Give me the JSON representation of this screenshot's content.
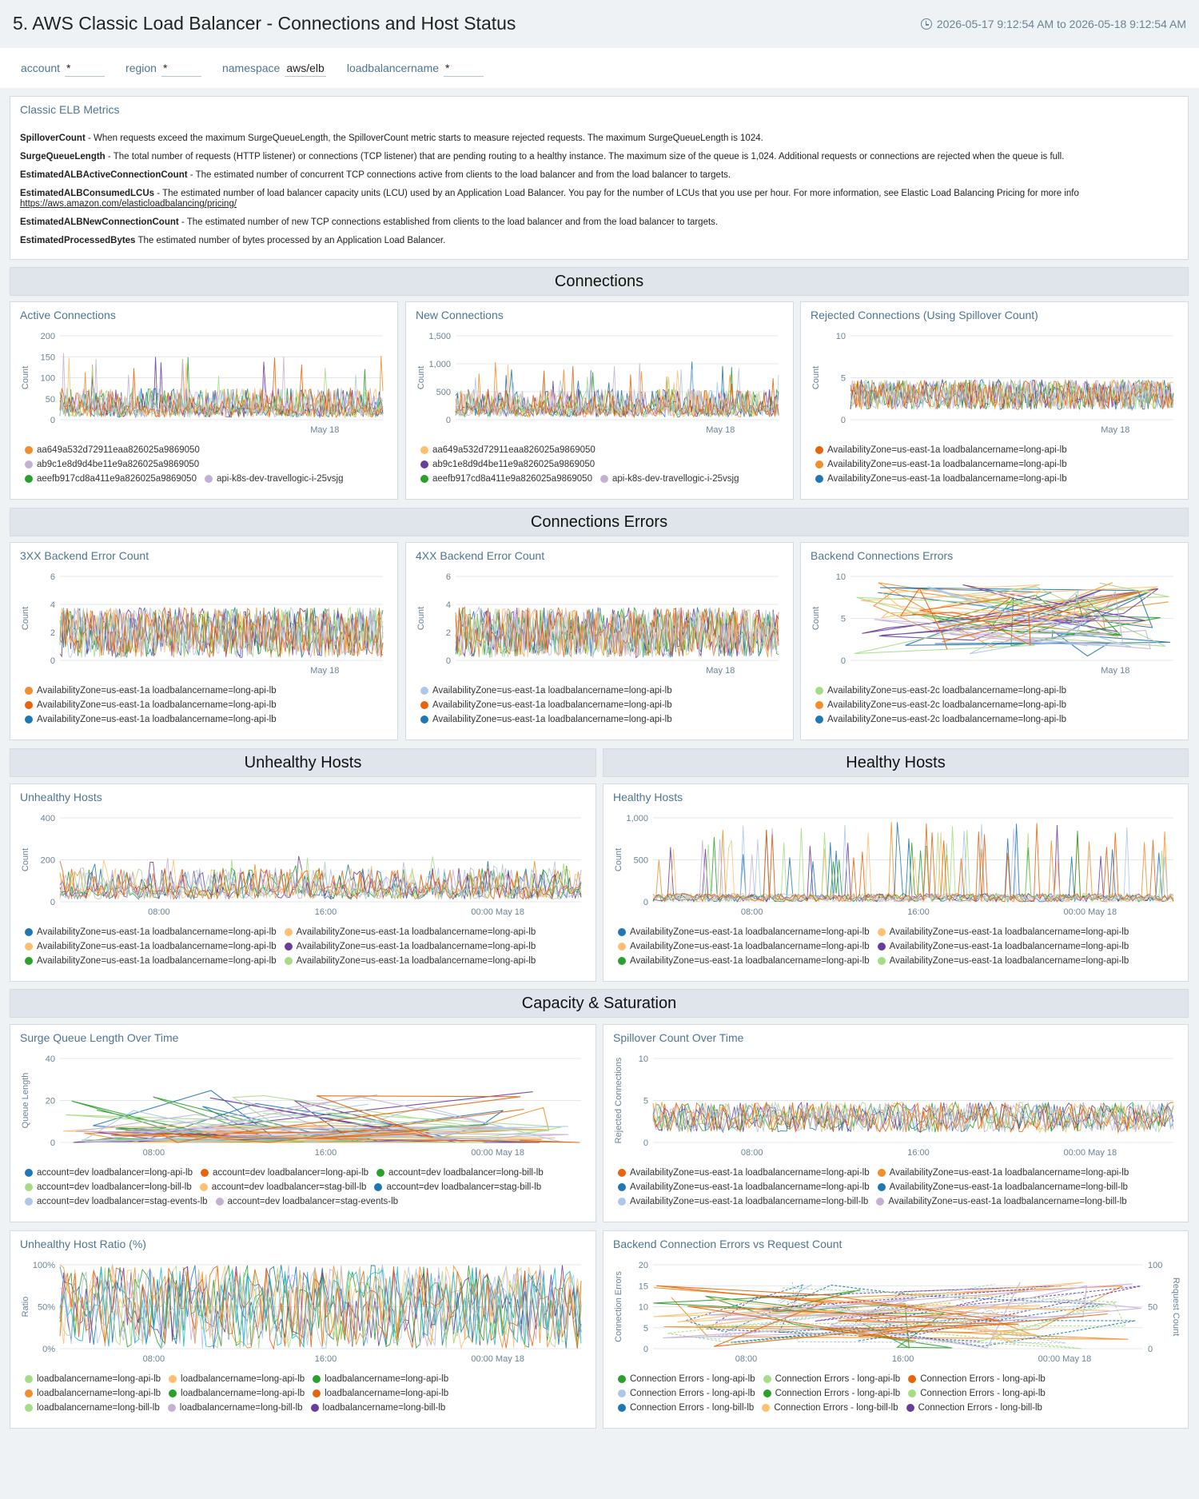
{
  "header": {
    "title": "5. AWS Classic Load Balancer - Connections and Host Status",
    "time_range": "2026-05-17 9:12:54 AM to 2026-05-18 9:12:54 AM",
    "clock_icon": "clock-icon"
  },
  "filters": [
    {
      "label": "account",
      "value": "*"
    },
    {
      "label": "region",
      "value": "*"
    },
    {
      "label": "namespace",
      "value": "aws/elb"
    },
    {
      "label": "loadbalancername",
      "value": "*"
    }
  ],
  "text_panel": {
    "title": "Classic ELB Metrics",
    "items": [
      {
        "term": "SpilloverCount",
        "desc": " - When requests exceed the maximum SurgeQueueLength, the SpilloverCount metric starts to measure rejected requests. The maximum SurgeQueueLength is 1024."
      },
      {
        "term": "SurgeQueueLength",
        "desc": " - The total number of requests (HTTP listener) or connections (TCP listener) that are pending routing to a healthy instance. The maximum size of the queue is 1,024. Additional requests or connections are rejected when the queue is full."
      },
      {
        "term": "EstimatedALBActiveConnectionCount",
        "desc": " - The estimated number of concurrent TCP connections active from clients to the load balancer and from the load balancer to targets."
      },
      {
        "term": "EstimatedALBConsumedLCUs",
        "desc": " - The estimated number of load balancer capacity units (LCU) used by an Application Load Balancer. You pay for the number of LCUs that you use per hour. For more information, see Elastic Load Balancing Pricing for more info",
        "link": "https://aws.amazon.com/elasticloadbalancing/pricing/"
      },
      {
        "term": "EstimatedALBNewConnectionCount",
        "desc": " - The estimated number of new TCP connections established from clients to the load balancer and from the load balancer to targets."
      },
      {
        "term": "EstimatedProcessedBytes",
        "desc": " The estimated number of bytes processed by an Application Load Balancer."
      }
    ]
  },
  "sections": {
    "connections": "Connections",
    "connections_errors": "Connections Errors",
    "unhealthy_hosts": "Unhealthy Hosts",
    "healthy_hosts": "Healthy Hosts",
    "capacity": "Capacity & Saturation"
  },
  "colors": {
    "orange": "#f28e2b",
    "lightorange": "#ffbf70",
    "purple": "#6a3d9a",
    "lilac": "#c5b0d5",
    "green": "#2ca02c",
    "lightgreen": "#a6dc85",
    "blue": "#1f77b4",
    "lightblue": "#aec7e8",
    "darkorange": "#e8640c"
  },
  "chart_data": [
    {
      "id": "active",
      "type": "line",
      "title": "Active Connections",
      "ylabel": "Count",
      "yticks": [
        "0",
        "50",
        "100",
        "150",
        "200"
      ],
      "ylim": [
        0,
        200
      ],
      "xticks": [
        {
          "label": "May 18",
          "pos": 0.82
        }
      ],
      "series_style": "noisy",
      "base": 30,
      "amp": 70,
      "spikes": 160,
      "legend": [
        [
          {
            "name": "aa649a532d72911eaa826025a9869050",
            "color": "#f28e2b"
          }
        ],
        [
          {
            "name": "ab9c1e8d9d4be11e9a826025a9869050",
            "color": "#c5b0d5"
          }
        ],
        [
          {
            "name": "aeefb917cd8a411e9a826025a9869050",
            "color": "#2ca02c"
          },
          {
            "name": "api-k8s-dev-travellogic-i-25vsjg",
            "color": "#c5b0d5"
          }
        ]
      ]
    },
    {
      "id": "new",
      "type": "line",
      "title": "New Connections",
      "ylabel": "Count",
      "yticks": [
        "0",
        "500",
        "1,000",
        "1,500"
      ],
      "ylim": [
        0,
        1500
      ],
      "xticks": [
        {
          "label": "May 18",
          "pos": 0.82
        }
      ],
      "series_style": "noisy",
      "base": 250,
      "amp": 500,
      "spikes": 1050,
      "legend": [
        [
          {
            "name": "aa649a532d72911eaa826025a9869050",
            "color": "#ffbf70"
          }
        ],
        [
          {
            "name": "ab9c1e8d9d4be11e9a826025a9869050",
            "color": "#6a3d9a"
          }
        ],
        [
          {
            "name": "aeefb917cd8a411e9a826025a9869050",
            "color": "#2ca02c"
          },
          {
            "name": "api-k8s-dev-travellogic-i-25vsjg",
            "color": "#c5b0d5"
          }
        ]
      ]
    },
    {
      "id": "rejected",
      "type": "line",
      "title": "Rejected Connections (Using Spillover Count)",
      "ylabel": "Count",
      "yticks": [
        "0",
        "5",
        "10"
      ],
      "ylim": [
        0,
        10
      ],
      "xticks": [
        {
          "label": "May 18",
          "pos": 0.82
        }
      ],
      "series_style": "band",
      "base": 3,
      "amp": 1.8,
      "spikes": 0,
      "legend": [
        [
          {
            "name": "AvailabilityZone=us-east-1a loadbalancername=long-api-lb",
            "color": "#e8640c"
          }
        ],
        [
          {
            "name": "AvailabilityZone=us-east-1a loadbalancername=long-api-lb",
            "color": "#f28e2b"
          }
        ],
        [
          {
            "name": "AvailabilityZone=us-east-1a loadbalancername=long-api-lb",
            "color": "#1f77b4"
          }
        ]
      ]
    },
    {
      "id": "err3xx",
      "type": "line",
      "title": "3XX Backend Error Count",
      "ylabel": "Count",
      "yticks": [
        "0",
        "2",
        "4",
        "6"
      ],
      "ylim": [
        0,
        6
      ],
      "xticks": [
        {
          "label": "May 18",
          "pos": 0.82
        }
      ],
      "series_style": "band",
      "base": 2,
      "amp": 1.8,
      "spikes": 0,
      "legend": [
        [
          {
            "name": "AvailabilityZone=us-east-1a loadbalancername=long-api-lb",
            "color": "#f28e2b"
          }
        ],
        [
          {
            "name": "AvailabilityZone=us-east-1a loadbalancername=long-api-lb",
            "color": "#e8640c"
          }
        ],
        [
          {
            "name": "AvailabilityZone=us-east-1a loadbalancername=long-api-lb",
            "color": "#1f77b4"
          }
        ]
      ]
    },
    {
      "id": "err4xx",
      "type": "line",
      "title": "4XX Backend Error Count",
      "ylabel": "Count",
      "yticks": [
        "0",
        "2",
        "4",
        "6"
      ],
      "ylim": [
        0,
        6
      ],
      "xticks": [
        {
          "label": "May 18",
          "pos": 0.82
        }
      ],
      "series_style": "band",
      "base": 2,
      "amp": 1.8,
      "spikes": 0,
      "legend": [
        [
          {
            "name": "AvailabilityZone=us-east-1a loadbalancername=long-api-lb",
            "color": "#aec7e8"
          }
        ],
        [
          {
            "name": "AvailabilityZone=us-east-1a loadbalancername=long-api-lb",
            "color": "#e8640c"
          }
        ],
        [
          {
            "name": "AvailabilityZone=us-east-1a loadbalancername=long-api-lb",
            "color": "#1f77b4"
          }
        ]
      ]
    },
    {
      "id": "backend",
      "type": "line",
      "title": "Backend Connections Errors",
      "ylabel": "Count",
      "yticks": [
        "0",
        "5",
        "10"
      ],
      "ylim": [
        0,
        10
      ],
      "xticks": [
        {
          "label": "May 18",
          "pos": 0.82
        }
      ],
      "series_style": "sparse",
      "base": 5,
      "amp": 4.5,
      "spikes": 0,
      "legend": [
        [
          {
            "name": "AvailabilityZone=us-east-2c loadbalancername=long-api-lb",
            "color": "#a6dc85"
          }
        ],
        [
          {
            "name": "AvailabilityZone=us-east-2c loadbalancername=long-api-lb",
            "color": "#f28e2b"
          }
        ],
        [
          {
            "name": "AvailabilityZone=us-east-2c loadbalancername=long-api-lb",
            "color": "#1f77b4"
          }
        ]
      ]
    },
    {
      "id": "unhealthy",
      "type": "line",
      "title": "Unhealthy Hosts",
      "ylabel": "Count",
      "yticks": [
        "0",
        "200",
        "400"
      ],
      "ylim": [
        0,
        400
      ],
      "xticks": [
        {
          "label": "08:00",
          "pos": 0.19
        },
        {
          "label": "16:00",
          "pos": 0.51
        },
        {
          "label": "00:00 May 18",
          "pos": 0.84
        }
      ],
      "series_style": "noisy",
      "base": 60,
      "amp": 150,
      "spikes": 220,
      "legend": [
        [
          {
            "name": "AvailabilityZone=us-east-1a loadbalancername=long-api-lb",
            "color": "#1f77b4"
          },
          {
            "name": "AvailabilityZone=us-east-1a loadbalancername=long-api-lb",
            "color": "#ffbf70"
          }
        ],
        [
          {
            "name": "AvailabilityZone=us-east-1a loadbalancername=long-api-lb",
            "color": "#ffbf70"
          },
          {
            "name": "AvailabilityZone=us-east-1a loadbalancername=long-api-lb",
            "color": "#6a3d9a"
          }
        ],
        [
          {
            "name": "AvailabilityZone=us-east-1a loadbalancername=long-api-lb",
            "color": "#2ca02c"
          },
          {
            "name": "AvailabilityZone=us-east-1a loadbalancername=long-api-lb",
            "color": "#a6dc85"
          }
        ]
      ]
    },
    {
      "id": "healthy",
      "type": "line",
      "title": "Healthy Hosts",
      "ylabel": "Count",
      "yticks": [
        "0",
        "500",
        "1,000"
      ],
      "ylim": [
        0,
        1000
      ],
      "xticks": [
        {
          "label": "08:00",
          "pos": 0.19
        },
        {
          "label": "16:00",
          "pos": 0.51
        },
        {
          "label": "00:00 May 18",
          "pos": 0.84
        }
      ],
      "series_style": "spiky",
      "base": 40,
      "amp": 100,
      "spikes": 950,
      "legend": [
        [
          {
            "name": "AvailabilityZone=us-east-1a loadbalancername=long-api-lb",
            "color": "#1f77b4"
          },
          {
            "name": "AvailabilityZone=us-east-1a loadbalancername=long-api-lb",
            "color": "#ffbf70"
          }
        ],
        [
          {
            "name": "AvailabilityZone=us-east-1a loadbalancername=long-api-lb",
            "color": "#ffbf70"
          },
          {
            "name": "AvailabilityZone=us-east-1a loadbalancername=long-api-lb",
            "color": "#6a3d9a"
          }
        ],
        [
          {
            "name": "AvailabilityZone=us-east-1a loadbalancername=long-api-lb",
            "color": "#2ca02c"
          },
          {
            "name": "AvailabilityZone=us-east-1a loadbalancername=long-api-lb",
            "color": "#a6dc85"
          }
        ]
      ]
    },
    {
      "id": "surge",
      "type": "line",
      "title": "Surge Queue Length Over Time",
      "ylabel": "Queue Length",
      "yticks": [
        "0",
        "20",
        "40"
      ],
      "ylim": [
        0,
        40
      ],
      "xticks": [
        {
          "label": "08:00",
          "pos": 0.18
        },
        {
          "label": "16:00",
          "pos": 0.51
        },
        {
          "label": "00:00 May 18",
          "pos": 0.84
        }
      ],
      "series_style": "sparse",
      "base": 3,
      "amp": 6,
      "spikes": 25,
      "legend": [
        [
          {
            "name": "account=dev loadbalancer=long-api-lb",
            "color": "#1f77b4"
          },
          {
            "name": "account=dev loadbalancer=long-api-lb",
            "color": "#e8640c"
          },
          {
            "name": "account=dev loadbalancer=long-bill-lb",
            "color": "#2ca02c"
          }
        ],
        [
          {
            "name": "account=dev loadbalancer=long-bill-lb",
            "color": "#a6dc85"
          },
          {
            "name": "account=dev loadbalancer=stag-bill-lb",
            "color": "#ffbf70"
          },
          {
            "name": "account=dev loadbalancer=stag-bill-lb",
            "color": "#1f77b4"
          }
        ],
        [
          {
            "name": "account=dev loadbalancer=stag-events-lb",
            "color": "#aec7e8"
          },
          {
            "name": "account=dev loadbalancer=stag-events-lb",
            "color": "#c5b0d5"
          }
        ]
      ]
    },
    {
      "id": "spillover",
      "type": "line",
      "title": "Spillover Count Over Time",
      "ylabel": "Rejected Connections",
      "yticks": [
        "0",
        "5",
        "10"
      ],
      "ylim": [
        0,
        10
      ],
      "xticks": [
        {
          "label": "08:00",
          "pos": 0.19
        },
        {
          "label": "16:00",
          "pos": 0.51
        },
        {
          "label": "00:00 May 18",
          "pos": 0.84
        }
      ],
      "series_style": "band",
      "base": 3,
      "amp": 1.8,
      "spikes": 0,
      "legend": [
        [
          {
            "name": "AvailabilityZone=us-east-1a loadbalancername=long-api-lb",
            "color": "#e8640c"
          },
          {
            "name": "AvailabilityZone=us-east-1a loadbalancername=long-api-lb",
            "color": "#f28e2b"
          }
        ],
        [
          {
            "name": "AvailabilityZone=us-east-1a loadbalancername=long-api-lb",
            "color": "#1f77b4"
          },
          {
            "name": "AvailabilityZone=us-east-1a loadbalancername=long-bill-lb",
            "color": "#1f77b4"
          }
        ],
        [
          {
            "name": "AvailabilityZone=us-east-1a loadbalancername=long-bill-lb",
            "color": "#aec7e8"
          },
          {
            "name": "AvailabilityZone=us-east-1a loadbalancername=long-bill-lb",
            "color": "#c5b0d5"
          }
        ]
      ]
    },
    {
      "id": "ratio",
      "type": "line",
      "title": "Unhealthy Host Ratio (%)",
      "ylabel": "Ratio",
      "yticks": [
        "0%",
        "50%",
        "100%"
      ],
      "ylim": [
        0,
        100
      ],
      "xticks": [
        {
          "label": "08:00",
          "pos": 0.18
        },
        {
          "label": "16:00",
          "pos": 0.51
        },
        {
          "label": "00:00 May 18",
          "pos": 0.84
        }
      ],
      "series_style": "full",
      "base": 50,
      "amp": 50,
      "spikes": 0,
      "legend": [
        [
          {
            "name": "loadbalancername=long-api-lb",
            "color": "#a6dc85"
          },
          {
            "name": "loadbalancername=long-api-lb",
            "color": "#ffbf70"
          },
          {
            "name": "loadbalancername=long-api-lb",
            "color": "#2ca02c"
          }
        ],
        [
          {
            "name": "loadbalancername=long-api-lb",
            "color": "#f28e2b"
          },
          {
            "name": "loadbalancername=long-api-lb",
            "color": "#2ca02c"
          },
          {
            "name": "loadbalancername=long-api-lb",
            "color": "#e8640c"
          }
        ],
        [
          {
            "name": "loadbalancername=long-bill-lb",
            "color": "#a6dc85"
          },
          {
            "name": "loadbalancername=long-bill-lb",
            "color": "#c5b0d5"
          },
          {
            "name": "loadbalancername=long-bill-lb",
            "color": "#6a3d9a"
          }
        ]
      ]
    },
    {
      "id": "vsreq",
      "type": "line",
      "title": "Backend Connection Errors vs Request Count",
      "ylabel": "Connection Errors",
      "ylabel_right": "Request Count",
      "yticks": [
        "0",
        "5",
        "10",
        "15",
        "20"
      ],
      "ylim": [
        0,
        20
      ],
      "yticks_right": [
        "0",
        "50",
        "100"
      ],
      "xticks": [
        {
          "label": "08:00",
          "pos": 0.19
        },
        {
          "label": "16:00",
          "pos": 0.51
        },
        {
          "label": "00:00 May 18",
          "pos": 0.84
        }
      ],
      "series_style": "sparse",
      "base": 8,
      "amp": 8,
      "spikes": 0,
      "legend": [
        [
          {
            "name": "Connection Errors - long-api-lb",
            "color": "#2ca02c"
          },
          {
            "name": "Connection Errors - long-api-lb",
            "color": "#a6dc85"
          },
          {
            "name": "Connection Errors - long-api-lb",
            "color": "#e8640c"
          }
        ],
        [
          {
            "name": "Connection Errors - long-api-lb",
            "color": "#aec7e8"
          },
          {
            "name": "Connection Errors - long-api-lb",
            "color": "#2ca02c"
          },
          {
            "name": "Connection Errors - long-api-lb",
            "color": "#a6dc85"
          }
        ],
        [
          {
            "name": "Connection Errors - long-bill-lb",
            "color": "#1f77b4"
          },
          {
            "name": "Connection Errors - long-bill-lb",
            "color": "#ffbf70"
          },
          {
            "name": "Connection Errors - long-bill-lb",
            "color": "#6a3d9a"
          }
        ]
      ]
    }
  ]
}
